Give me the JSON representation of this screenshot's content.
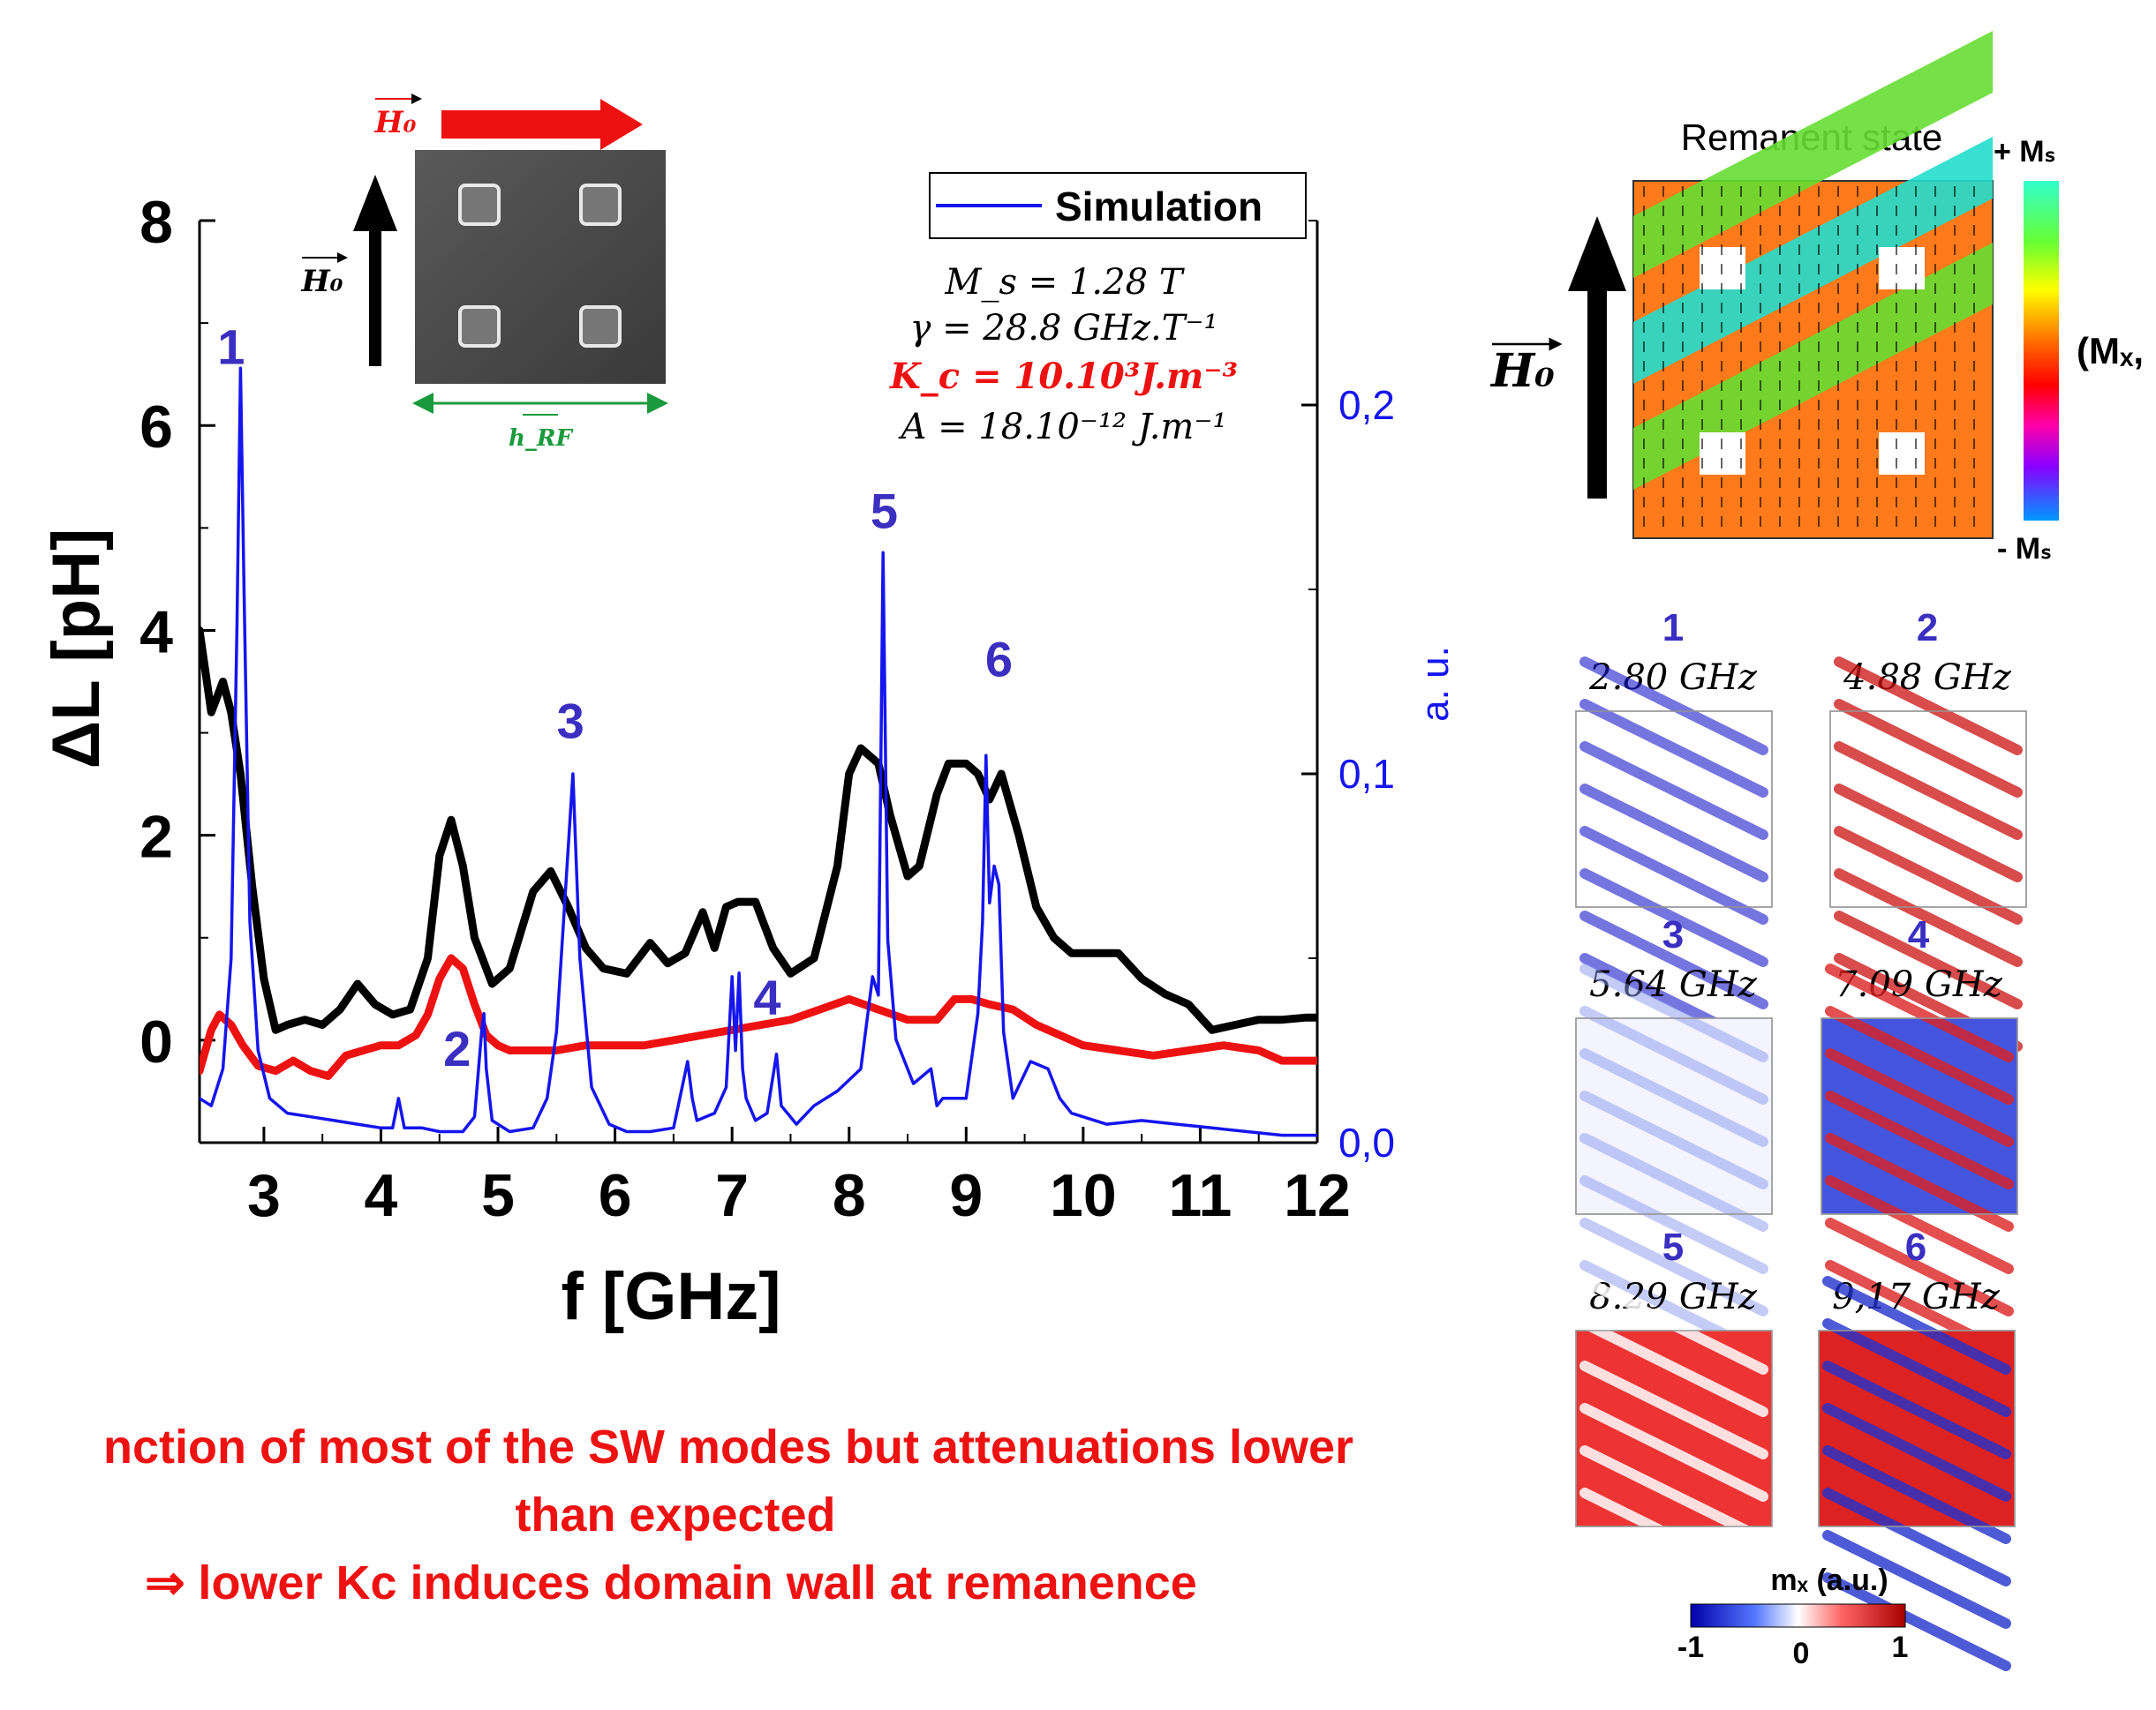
{
  "chart_data": {
    "type": "line",
    "xlabel": "f [GHz]",
    "ylabel": "ΔL [pH]",
    "y2label": "a. u.",
    "xlim": [
      2.45,
      12
    ],
    "ylim": [
      -1,
      8
    ],
    "y2lim": [
      0,
      0.25
    ],
    "xticks": [
      "3",
      "4",
      "5",
      "6",
      "7",
      "8",
      "9",
      "10",
      "11",
      "12"
    ],
    "yticks": [
      "0",
      "2",
      "4",
      "6",
      "8"
    ],
    "y2ticks": [
      "0,0",
      "0,1",
      "0,2"
    ],
    "legend": {
      "label": "Simulation",
      "placement": "top-right"
    },
    "series": [
      {
        "color": "#000000",
        "axis": "left",
        "x": [
          2.45,
          2.55,
          2.65,
          2.72,
          2.8,
          2.9,
          3.0,
          3.1,
          3.2,
          3.35,
          3.5,
          3.65,
          3.8,
          3.95,
          4.1,
          4.25,
          4.4,
          4.5,
          4.6,
          4.7,
          4.8,
          4.95,
          5.1,
          5.3,
          5.45,
          5.6,
          5.75,
          5.9,
          6.1,
          6.3,
          6.45,
          6.6,
          6.75,
          6.85,
          6.95,
          7.05,
          7.2,
          7.35,
          7.5,
          7.7,
          7.9,
          8.0,
          8.1,
          8.25,
          8.35,
          8.5,
          8.6,
          8.75,
          8.85,
          9.0,
          9.1,
          9.2,
          9.3,
          9.45,
          9.6,
          9.75,
          9.9,
          10.1,
          10.3,
          10.5,
          10.7,
          10.9,
          11.1,
          11.3,
          11.5,
          11.7,
          11.9,
          12.0
        ],
        "y": [
          4.0,
          3.2,
          3.5,
          3.2,
          2.6,
          1.5,
          0.6,
          0.1,
          0.15,
          0.2,
          0.15,
          0.3,
          0.55,
          0.35,
          0.25,
          0.3,
          0.8,
          1.8,
          2.15,
          1.7,
          1.0,
          0.55,
          0.7,
          1.45,
          1.65,
          1.3,
          0.9,
          0.7,
          0.65,
          0.95,
          0.75,
          0.85,
          1.25,
          0.9,
          1.3,
          1.35,
          1.35,
          0.9,
          0.65,
          0.8,
          1.7,
          2.6,
          2.85,
          2.7,
          2.2,
          1.6,
          1.7,
          2.4,
          2.7,
          2.7,
          2.6,
          2.35,
          2.6,
          2.0,
          1.3,
          1.0,
          0.85,
          0.85,
          0.85,
          0.6,
          0.45,
          0.35,
          0.1,
          0.15,
          0.2,
          0.2,
          0.22,
          0.22
        ]
      },
      {
        "color": "#ee1111",
        "axis": "left",
        "x": [
          2.45,
          2.55,
          2.62,
          2.72,
          2.82,
          2.95,
          3.1,
          3.25,
          3.4,
          3.55,
          3.7,
          3.85,
          4.0,
          4.15,
          4.3,
          4.4,
          4.5,
          4.6,
          4.7,
          4.8,
          4.9,
          5.0,
          5.1,
          5.25,
          5.5,
          5.75,
          6.0,
          6.25,
          6.5,
          6.75,
          7.0,
          7.25,
          7.5,
          7.75,
          8.0,
          8.25,
          8.5,
          8.75,
          8.9,
          9.05,
          9.2,
          9.4,
          9.6,
          9.8,
          10.0,
          10.3,
          10.6,
          10.9,
          11.2,
          11.5,
          11.7,
          12.0
        ],
        "y": [
          -0.3,
          0.1,
          0.25,
          0.15,
          -0.05,
          -0.25,
          -0.3,
          -0.2,
          -0.3,
          -0.35,
          -0.15,
          -0.1,
          -0.05,
          -0.05,
          0.05,
          0.25,
          0.6,
          0.8,
          0.7,
          0.35,
          0.05,
          -0.05,
          -0.1,
          -0.1,
          -0.1,
          -0.05,
          -0.05,
          -0.05,
          0.0,
          0.05,
          0.1,
          0.15,
          0.2,
          0.3,
          0.4,
          0.3,
          0.2,
          0.2,
          0.4,
          0.4,
          0.35,
          0.3,
          0.15,
          0.05,
          -0.05,
          -0.1,
          -0.15,
          -0.1,
          -0.05,
          -0.1,
          -0.2,
          -0.2
        ]
      },
      {
        "name": "Simulation",
        "color": "#1515ee",
        "axis": "right",
        "x": [
          2.45,
          2.55,
          2.65,
          2.72,
          2.77,
          2.8,
          2.83,
          2.88,
          2.95,
          3.05,
          3.2,
          3.4,
          3.6,
          3.8,
          4.0,
          4.1,
          4.15,
          4.2,
          4.35,
          4.5,
          4.7,
          4.8,
          4.86,
          4.88,
          4.9,
          4.95,
          5.1,
          5.3,
          5.42,
          5.5,
          5.56,
          5.64,
          5.7,
          5.8,
          5.95,
          6.1,
          6.3,
          6.5,
          6.62,
          6.66,
          6.7,
          6.85,
          6.95,
          7.0,
          7.03,
          7.06,
          7.09,
          7.12,
          7.2,
          7.3,
          7.38,
          7.42,
          7.55,
          7.7,
          7.9,
          8.1,
          8.2,
          8.25,
          8.29,
          8.33,
          8.4,
          8.55,
          8.7,
          8.75,
          8.8,
          9.0,
          9.1,
          9.14,
          9.17,
          9.2,
          9.24,
          9.28,
          9.32,
          9.4,
          9.55,
          9.7,
          9.8,
          9.9,
          10.2,
          10.5,
          10.8,
          11.1,
          11.4,
          11.7,
          12.0
        ],
        "y": [
          0.012,
          0.01,
          0.02,
          0.05,
          0.14,
          0.21,
          0.15,
          0.06,
          0.025,
          0.012,
          0.008,
          0.007,
          0.006,
          0.005,
          0.004,
          0.004,
          0.012,
          0.004,
          0.004,
          0.003,
          0.003,
          0.007,
          0.03,
          0.035,
          0.02,
          0.006,
          0.003,
          0.004,
          0.012,
          0.03,
          0.06,
          0.1,
          0.05,
          0.015,
          0.005,
          0.003,
          0.003,
          0.004,
          0.022,
          0.012,
          0.006,
          0.008,
          0.015,
          0.045,
          0.025,
          0.046,
          0.02,
          0.012,
          0.006,
          0.008,
          0.024,
          0.01,
          0.005,
          0.01,
          0.014,
          0.02,
          0.045,
          0.04,
          0.16,
          0.055,
          0.028,
          0.016,
          0.02,
          0.01,
          0.012,
          0.012,
          0.035,
          0.06,
          0.105,
          0.065,
          0.075,
          0.07,
          0.03,
          0.012,
          0.022,
          0.02,
          0.012,
          0.008,
          0.005,
          0.006,
          0.005,
          0.004,
          0.003,
          0.002,
          0.002
        ]
      }
    ],
    "peak_labels": [
      {
        "text": "1",
        "x": 2.72,
        "y": 6.6
      },
      {
        "text": "2",
        "x": 4.65,
        "y": -0.25
      },
      {
        "text": "3",
        "x": 5.62,
        "y": 2.95
      },
      {
        "text": "4",
        "x": 7.3,
        "y": 0.25
      },
      {
        "text": "5",
        "x": 8.3,
        "y": 5.0
      },
      {
        "text": "6",
        "x": 9.28,
        "y": 3.55
      }
    ]
  },
  "params": [
    {
      "text": "M_s = 1.28 T",
      "color": "#000000"
    },
    {
      "text": "γ = 28.8 GHz.T⁻¹",
      "color": "#000000"
    },
    {
      "text": "K_c = 10.10³J.m⁻³",
      "color": "#ee1111"
    },
    {
      "text": "A = 18.10⁻¹² J.m⁻¹",
      "color": "#000000"
    }
  ],
  "inset": {
    "h0_top": "H₀",
    "h0_left": "H₀",
    "hrf": "h_RF"
  },
  "remanent": {
    "title": "Remanent state",
    "h0": "H₀",
    "plus": "+ Mₛ",
    "minus": "- Mₛ",
    "colorbar_label": "(Mₓ,"
  },
  "modes": [
    {
      "num": "1",
      "freq": "2.80 GHz"
    },
    {
      "num": "2",
      "freq": "4.88 GHz"
    },
    {
      "num": "3",
      "freq": "5.64 GHz"
    },
    {
      "num": "4",
      "freq": "7.09 GHz"
    },
    {
      "num": "5",
      "freq": "8.29 GHz"
    },
    {
      "num": "6",
      "freq": "9,17 GHz"
    }
  ],
  "mx_colorbar": {
    "label": "mₓ (a.u.)",
    "ticks": [
      "-1",
      "0",
      "1"
    ]
  },
  "conclusion": {
    "line1": "nction of most of the SW modes but attenuations lower",
    "line2": "than expected",
    "line3": "⇒ lower Kc induces domain wall at remanence"
  },
  "colors": {
    "blue_label": "#3a2fc0",
    "red_text": "#ee1111",
    "green_arrow": "#1a9a3c"
  }
}
